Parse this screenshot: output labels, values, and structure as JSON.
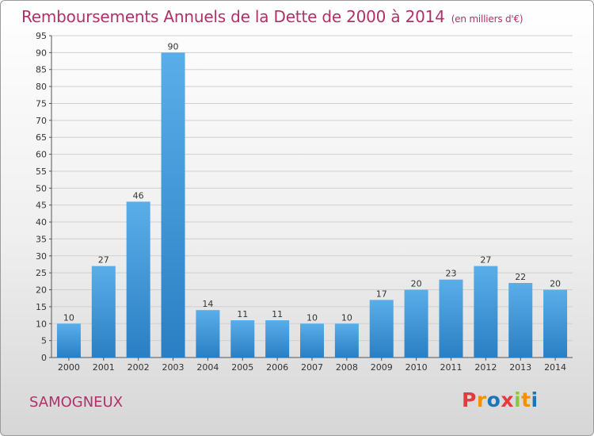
{
  "header": {
    "title": "Remboursements Annuels de la Dette de 2000 à 2014",
    "unit": "(en milliers d'€)"
  },
  "footer": {
    "city": "SAMOGNEUX",
    "logo": [
      "P",
      "r",
      "o",
      "x",
      "i",
      "t",
      "i"
    ],
    "logo_colors": [
      "#e7393f",
      "#f39200",
      "#1b75bb",
      "#e7393f",
      "#8cc63f",
      "#f39200",
      "#1b75bb"
    ]
  },
  "chart_data": {
    "type": "bar",
    "title": "Remboursements Annuels de la Dette de 2000 à 2014",
    "xlabel": "",
    "ylabel": "",
    "categories": [
      "2000",
      "2001",
      "2002",
      "2003",
      "2004",
      "2005",
      "2006",
      "2007",
      "2008",
      "2009",
      "2010",
      "2011",
      "2012",
      "2013",
      "2014"
    ],
    "values": [
      10,
      27,
      46,
      90,
      14,
      11,
      11,
      10,
      10,
      17,
      20,
      23,
      27,
      22,
      20
    ],
    "ylim": [
      0,
      95
    ],
    "yticks": [
      0,
      5,
      10,
      15,
      20,
      25,
      30,
      35,
      40,
      45,
      50,
      55,
      60,
      65,
      70,
      75,
      80,
      85,
      90,
      95
    ],
    "grid": true,
    "bar_color_top": "#5aaee8",
    "bar_color_bottom": "#2a7fc4",
    "title_color": "#b0306a"
  }
}
